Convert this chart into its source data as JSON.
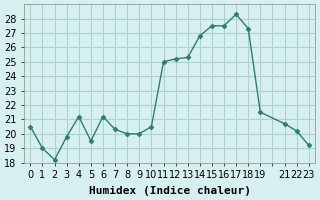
{
  "x": [
    0,
    1,
    2,
    3,
    4,
    5,
    6,
    7,
    8,
    9,
    10,
    11,
    12,
    13,
    14,
    15,
    16,
    17,
    18,
    19,
    21,
    22,
    23
  ],
  "y": [
    20.5,
    19.0,
    18.2,
    19.8,
    21.2,
    19.5,
    21.2,
    20.3,
    20.0,
    20.0,
    20.5,
    25.0,
    25.2,
    25.3,
    26.8,
    27.5,
    27.5,
    28.3,
    27.3,
    21.5,
    20.7,
    20.2,
    19.2
  ],
  "line_color": "#2e7d6e",
  "marker": "D",
  "marker_size": 2.5,
  "bg_color": "#d6f0f0",
  "grid_color": "#b0d0d0",
  "xlabel": "Humidex (Indice chaleur)",
  "xlabel_fontsize": 8,
  "tick_fontsize": 7,
  "ylim": [
    18,
    29
  ],
  "yticks": [
    18,
    19,
    20,
    21,
    22,
    23,
    24,
    25,
    26,
    27,
    28
  ],
  "xtick_label_map": {
    "0": "0",
    "1": "1",
    "2": "2",
    "3": "3",
    "4": "4",
    "5": "5",
    "6": "6",
    "7": "7",
    "8": "8",
    "9": "9",
    "10": "10",
    "11": "11",
    "12": "12",
    "13": "13",
    "14": "14",
    "15": "15",
    "16": "16",
    "17": "17",
    "18": "18",
    "19": "19",
    "20": "",
    "21": "21",
    "22": "22",
    "23": "23"
  }
}
